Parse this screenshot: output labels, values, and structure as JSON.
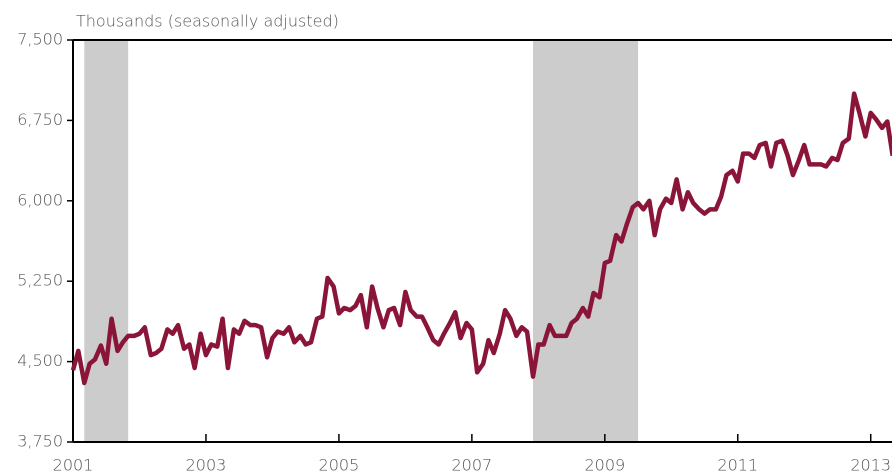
{
  "chart_data": {
    "type": "line",
    "y_axis_label": "Thousands (seasonally adjusted)",
    "color": "#8a1538",
    "shade_color": "#cccccc",
    "shaded_ranges": [
      [
        2001.17,
        2001.83
      ],
      [
        2007.92,
        2009.5
      ]
    ],
    "xlim": [
      2001,
      2013.32
    ],
    "xticks": [
      2001,
      2003,
      2005,
      2007,
      2009,
      2011,
      2013
    ],
    "ylim": [
      3750,
      7500
    ],
    "yticks": [
      {
        "value": 3750,
        "label": "3,750"
      },
      {
        "value": 4500,
        "label": "4,500"
      },
      {
        "value": 5250,
        "label": "5,250"
      },
      {
        "value": 6000,
        "label": "6,000"
      },
      {
        "value": 6750,
        "label": "6,750"
      },
      {
        "value": 7500,
        "label": "7,500"
      }
    ],
    "x": [
      2001.0,
      2001.08,
      2001.17,
      2001.25,
      2001.33,
      2001.42,
      2001.5,
      2001.58,
      2001.67,
      2001.75,
      2001.83,
      2001.92,
      2002.0,
      2002.08,
      2002.17,
      2002.25,
      2002.33,
      2002.42,
      2002.5,
      2002.58,
      2002.67,
      2002.75,
      2002.83,
      2002.92,
      2003.0,
      2003.08,
      2003.17,
      2003.25,
      2003.33,
      2003.42,
      2003.5,
      2003.58,
      2003.67,
      2003.75,
      2003.83,
      2003.92,
      2004.0,
      2004.08,
      2004.17,
      2004.25,
      2004.33,
      2004.42,
      2004.5,
      2004.58,
      2004.67,
      2004.75,
      2004.83,
      2004.92,
      2005.0,
      2005.08,
      2005.17,
      2005.25,
      2005.33,
      2005.42,
      2005.5,
      2005.58,
      2005.67,
      2005.75,
      2005.83,
      2005.92,
      2006.0,
      2006.08,
      2006.17,
      2006.25,
      2006.33,
      2006.42,
      2006.5,
      2006.58,
      2006.67,
      2006.75,
      2006.83,
      2006.92,
      2007.0,
      2007.08,
      2007.17,
      2007.25,
      2007.33,
      2007.42,
      2007.5,
      2007.58,
      2007.67,
      2007.75,
      2007.83,
      2007.92,
      2008.0,
      2008.08,
      2008.17,
      2008.25,
      2008.33,
      2008.42,
      2008.5,
      2008.58,
      2008.67,
      2008.75,
      2008.83,
      2008.92,
      2009.0,
      2009.08,
      2009.17,
      2009.25,
      2009.33,
      2009.42,
      2009.5,
      2009.58,
      2009.67,
      2009.75,
      2009.83,
      2009.92,
      2010.0,
      2010.08,
      2010.17,
      2010.25,
      2010.33,
      2010.42,
      2010.5,
      2010.58,
      2010.67,
      2010.75,
      2010.83,
      2010.92,
      2011.0,
      2011.08,
      2011.17,
      2011.25,
      2011.33,
      2011.42,
      2011.5,
      2011.58,
      2011.67,
      2011.75,
      2011.83,
      2011.92,
      2012.0,
      2012.08,
      2012.17,
      2012.25,
      2012.33,
      2012.42,
      2012.5,
      2012.58,
      2012.67,
      2012.75,
      2012.83,
      2012.92,
      2013.0,
      2013.08,
      2013.17,
      2013.25,
      2013.33
    ],
    "values": [
      4420,
      4600,
      4300,
      4480,
      4520,
      4650,
      4480,
      4900,
      4600,
      4680,
      4740,
      4740,
      4760,
      4820,
      4560,
      4580,
      4620,
      4800,
      4760,
      4840,
      4620,
      4660,
      4440,
      4760,
      4560,
      4660,
      4640,
      4900,
      4440,
      4800,
      4760,
      4880,
      4840,
      4840,
      4820,
      4540,
      4720,
      4780,
      4760,
      4820,
      4680,
      4740,
      4660,
      4680,
      4900,
      4920,
      5280,
      5200,
      4950,
      5000,
      4980,
      5020,
      5120,
      4820,
      5200,
      5000,
      4820,
      4980,
      5000,
      4840,
      5150,
      4980,
      4920,
      4920,
      4820,
      4700,
      4660,
      4760,
      4860,
      4960,
      4720,
      4860,
      4800,
      4400,
      4480,
      4700,
      4580,
      4760,
      4980,
      4900,
      4740,
      4820,
      4780,
      4360,
      4660,
      4660,
      4840,
      4740,
      4740,
      4740,
      4860,
      4900,
      5000,
      4920,
      5140,
      5100,
      5420,
      5440,
      5680,
      5620,
      5780,
      5940,
      5980,
      5920,
      6000,
      5680,
      5920,
      6020,
      5980,
      6200,
      5920,
      6080,
      5980,
      5920,
      5880,
      5920,
      5920,
      6040,
      6240,
      6280,
      6180,
      6440,
      6440,
      6400,
      6520,
      6540,
      6320,
      6540,
      6560,
      6420,
      6240,
      6380,
      6520,
      6340,
      6340,
      6340,
      6320,
      6400,
      6380,
      6540,
      6580,
      7000,
      6820,
      6600,
      6820,
      6760,
      6680,
      6740,
      6420
    ]
  }
}
